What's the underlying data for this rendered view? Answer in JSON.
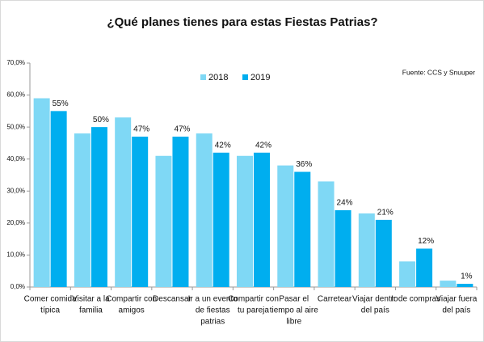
{
  "chart_data": {
    "type": "bar",
    "title": "¿Qué planes tienes para estas Fiestas Patrias?",
    "source": "Fuente: CCS y Snuuper",
    "categories": [
      [
        "Comer comida",
        "típica"
      ],
      [
        "Visitar a la",
        "familia"
      ],
      [
        "Compartir con",
        "amigos"
      ],
      [
        "Descansar"
      ],
      [
        "Ir a un evento",
        "de fiestas",
        "patrias"
      ],
      [
        "Compartir con",
        "tu pareja"
      ],
      [
        "Pasar el",
        "tiempo al aire",
        "libre"
      ],
      [
        "Carretear"
      ],
      [
        "Viajar dentro",
        "del país"
      ],
      [
        "Ir de compras"
      ],
      [
        "Viajar fuera",
        "del país"
      ]
    ],
    "series": [
      {
        "name": "2018",
        "color": "#7fd8f5",
        "values": [
          59,
          48,
          53,
          41,
          48,
          41,
          38,
          33,
          23,
          8,
          2
        ]
      },
      {
        "name": "2019",
        "color": "#00aeef",
        "values": [
          55,
          50,
          47,
          47,
          42,
          42,
          36,
          24,
          21,
          12,
          1
        ],
        "value_labels": [
          "55%",
          "50%",
          "47%",
          "47%",
          "42%",
          "42%",
          "36%",
          "24%",
          "21%",
          "12%",
          "1%"
        ]
      }
    ],
    "ylim": [
      0,
      70
    ],
    "yticks": [
      {
        "value": 0,
        "label": "0,0%"
      },
      {
        "value": 10,
        "label": "10,0%"
      },
      {
        "value": 20,
        "label": "20,0%"
      },
      {
        "value": 30,
        "label": "30,0%"
      },
      {
        "value": 40,
        "label": "40,0%"
      },
      {
        "value": 50,
        "label": "50,0%"
      },
      {
        "value": 60,
        "label": "60,0%"
      },
      {
        "value": 70,
        "label": "70,0%"
      }
    ],
    "grid": false
  }
}
